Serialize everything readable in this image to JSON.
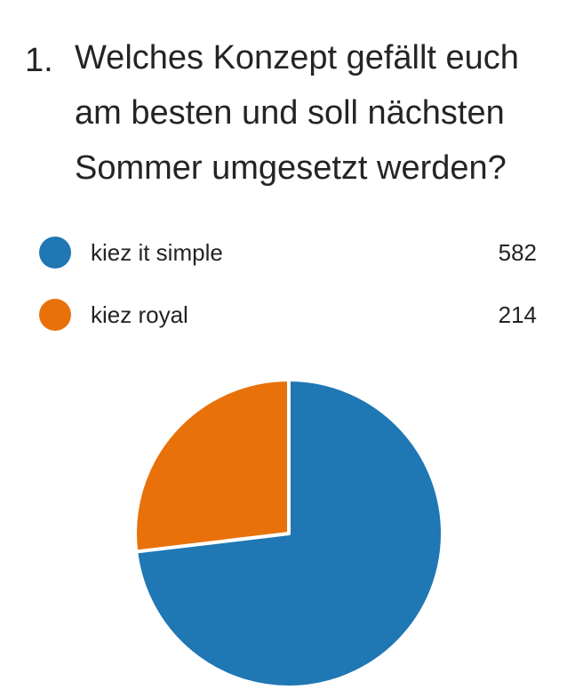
{
  "question": {
    "number": "1.",
    "text": "Welches Konzept gefällt euch am besten und soll nächsten Sommer umgesetzt werden?"
  },
  "legend": [
    {
      "label": "kiez it simple",
      "value": "582",
      "color": "#1f77b4"
    },
    {
      "label": "kiez royal",
      "value": "214",
      "color": "#e8710a"
    }
  ],
  "chart_data": {
    "type": "pie",
    "categories": [
      "kiez it simple",
      "kiez royal"
    ],
    "values": [
      582,
      214
    ],
    "colors": [
      "#1f77b4",
      "#e8710a"
    ],
    "title": "",
    "legend_position": "top"
  }
}
